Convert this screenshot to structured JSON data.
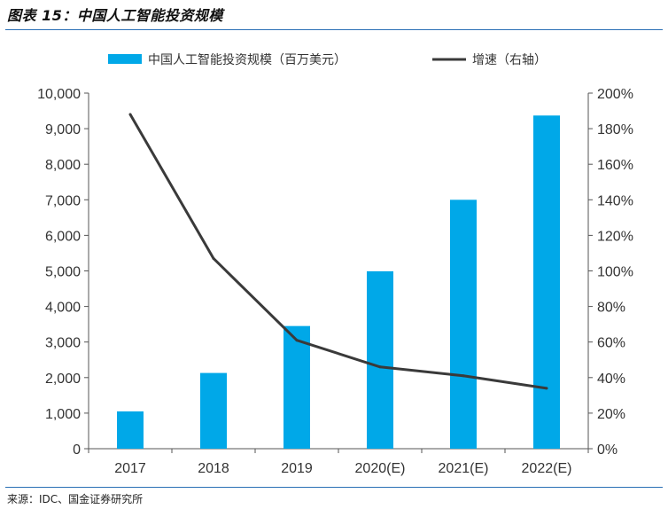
{
  "header": {
    "title": "图表 15：中国人工智能投资规模"
  },
  "footer": {
    "source": "来源：IDC、国金证券研究所"
  },
  "colors": {
    "bar": "#00a8e8",
    "line": "#3a3a3a",
    "rule": "#2a6fb5"
  },
  "chart_data": {
    "type": "bar",
    "categories": [
      "2017",
      "2018",
      "2019",
      "2020(E)",
      "2021(E)",
      "2022(E)"
    ],
    "series": [
      {
        "name": "中国人工智能投资规模（百万美元）",
        "type": "bar",
        "axis": "left",
        "values": [
          1050,
          2130,
          3450,
          4990,
          7000,
          9370
        ]
      },
      {
        "name": "增速（右轴）",
        "type": "line",
        "axis": "right",
        "values": [
          188,
          107,
          61,
          46,
          41,
          34
        ]
      }
    ],
    "left_axis": {
      "min": 0,
      "max": 10000,
      "step": 1000,
      "tick_labels": [
        "0",
        "1,000",
        "2,000",
        "3,000",
        "4,000",
        "5,000",
        "6,000",
        "7,000",
        "8,000",
        "9,000",
        "10,000"
      ]
    },
    "right_axis": {
      "min": 0,
      "max": 200,
      "step": 20,
      "tick_labels": [
        "0%",
        "20%",
        "40%",
        "60%",
        "80%",
        "100%",
        "120%",
        "140%",
        "160%",
        "180%",
        "200%"
      ]
    },
    "legend_position": "top",
    "grid": false
  }
}
